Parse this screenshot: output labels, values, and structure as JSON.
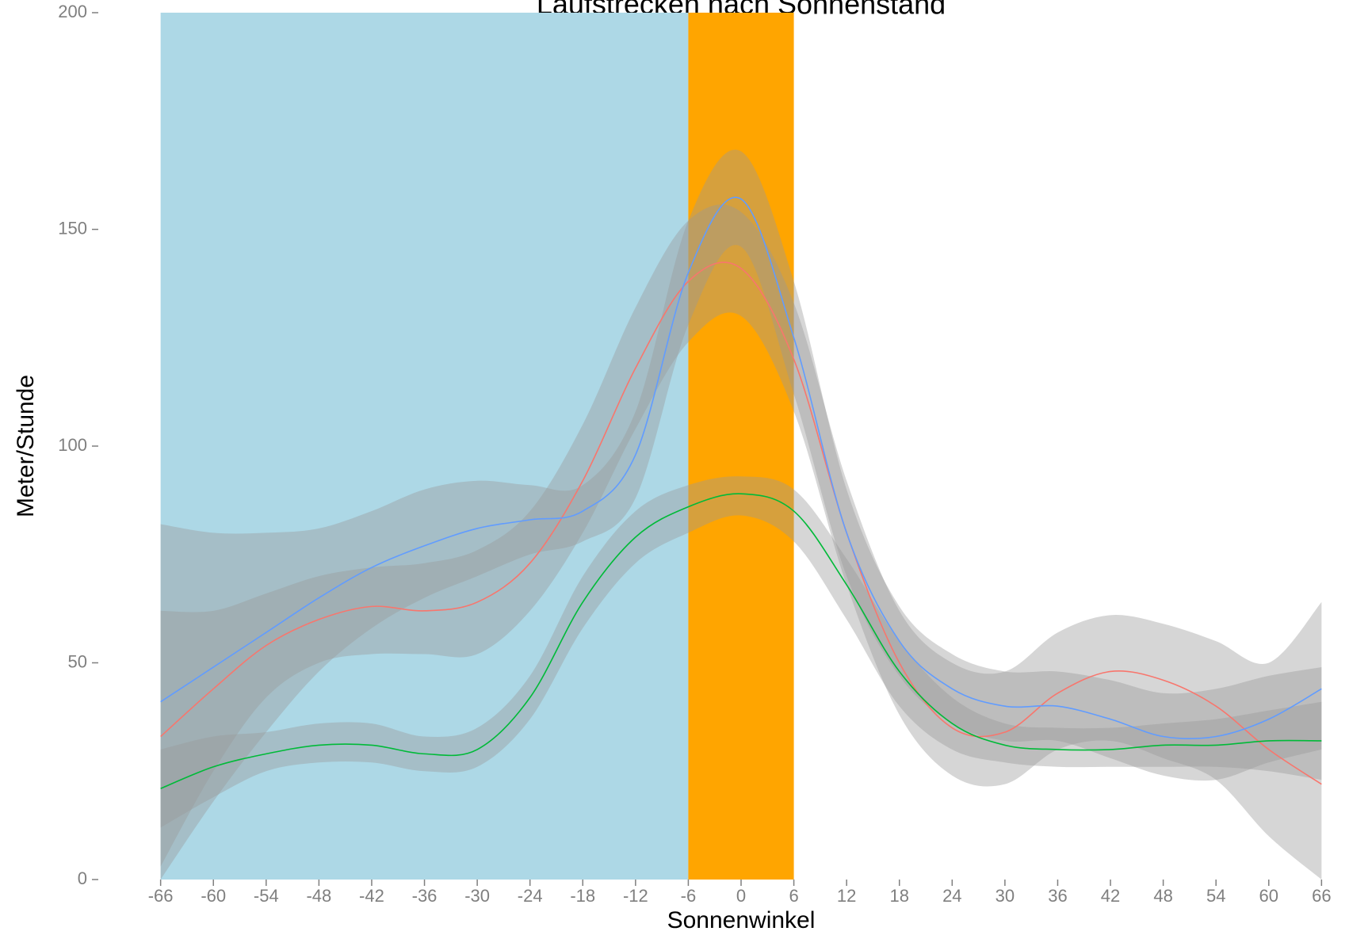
{
  "chart_data": {
    "type": "line",
    "title": "Laufstrecken nach Sonnenstand",
    "x_label": "Sonnenwinkel",
    "y_label": "Meter/Stunde",
    "x": [
      -66,
      -60,
      -54,
      -48,
      -42,
      -36,
      -30,
      -24,
      -18,
      -12,
      -6,
      0,
      6,
      12,
      18,
      24,
      30,
      36,
      42,
      48,
      54,
      60,
      66
    ],
    "xlim": [
      -67.5,
      67.5
    ],
    "ylim": [
      0,
      200
    ],
    "xticks": [
      -66,
      -60,
      -54,
      -48,
      -42,
      -36,
      -30,
      -24,
      -18,
      -12,
      -6,
      0,
      6,
      12,
      18,
      24,
      30,
      36,
      42,
      48,
      54,
      60,
      66
    ],
    "yticks": [
      0,
      50,
      100,
      150,
      200
    ],
    "grid": false,
    "ribbon_color": "#999999",
    "bands": [
      {
        "xmin": -66,
        "xmax": -6,
        "color": "#add8e6"
      },
      {
        "xmin": -6,
        "xmax": 6,
        "color": "#ffa500"
      }
    ],
    "series": [
      {
        "color": "#f8766d",
        "values": [
          33,
          44,
          54,
          60,
          63,
          62,
          64,
          73,
          92,
          118,
          138,
          141,
          120,
          80,
          50,
          35,
          34,
          43,
          48,
          46,
          40,
          30,
          22
        ],
        "lower": [
          3,
          25,
          42,
          50,
          52,
          52,
          52,
          62,
          80,
          104,
          124,
          130,
          108,
          68,
          38,
          24,
          22,
          30,
          32,
          28,
          23,
          10,
          0
        ],
        "upper": [
          62,
          62,
          66,
          70,
          72,
          73,
          76,
          85,
          105,
          132,
          152,
          154,
          133,
          92,
          62,
          50,
          48,
          57,
          61,
          59,
          55,
          50,
          64
        ]
      },
      {
        "color": "#619cff",
        "values": [
          41,
          49,
          57,
          65,
          72,
          77,
          81,
          83,
          85,
          98,
          140,
          157,
          125,
          80,
          55,
          44,
          40,
          40,
          37,
          33,
          33,
          37,
          44
        ],
        "lower": [
          0,
          18,
          34,
          48,
          58,
          65,
          70,
          75,
          78,
          88,
          128,
          146,
          112,
          70,
          47,
          36,
          32,
          32,
          28,
          24,
          23,
          27,
          30
        ],
        "upper": [
          82,
          80,
          80,
          81,
          85,
          90,
          92,
          91,
          91,
          108,
          152,
          168,
          138,
          90,
          63,
          52,
          48,
          48,
          46,
          43,
          44,
          47,
          49
        ]
      },
      {
        "color": "#00ba38",
        "values": [
          21,
          26,
          29,
          31,
          31,
          29,
          30,
          42,
          64,
          79,
          86,
          89,
          85,
          68,
          48,
          36,
          31,
          30,
          30,
          31,
          31,
          32,
          32
        ],
        "lower": [
          12,
          19,
          25,
          27,
          27,
          25,
          26,
          37,
          58,
          73,
          80,
          84,
          78,
          60,
          40,
          30,
          27,
          26,
          26,
          26,
          26,
          25,
          23
        ],
        "upper": [
          30,
          33,
          34,
          36,
          36,
          33,
          35,
          47,
          70,
          85,
          91,
          93,
          90,
          74,
          55,
          42,
          36,
          35,
          35,
          36,
          37,
          39,
          41
        ]
      }
    ]
  }
}
